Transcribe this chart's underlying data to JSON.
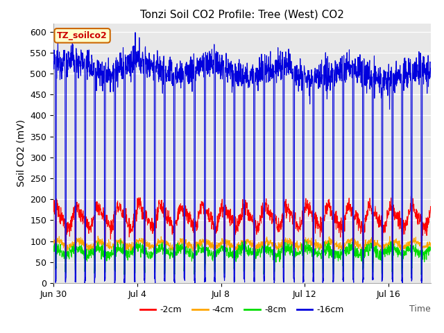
{
  "title": "Tonzi Soil CO2 Profile: Tree (West) CO2",
  "ylabel": "Soil CO2 (mV)",
  "xlabel": "Time",
  "legend_label": "TZ_soilco2",
  "legend_entries": [
    "-2cm",
    "-4cm",
    "-8cm",
    "-16cm"
  ],
  "legend_colors": [
    "#ff0000",
    "#ffa500",
    "#00dd00",
    "#0000dd"
  ],
  "line_colors": {
    "2cm": "#ff0000",
    "4cm": "#ffa500",
    "8cm": "#00dd00",
    "16cm": "#0000dd"
  },
  "ylim": [
    0,
    620
  ],
  "yticks": [
    0,
    50,
    100,
    150,
    200,
    250,
    300,
    350,
    400,
    450,
    500,
    550,
    600
  ],
  "bg_color": "#e8e8e8",
  "title_fontsize": 11,
  "axis_label_fontsize": 10,
  "tick_fontsize": 9
}
